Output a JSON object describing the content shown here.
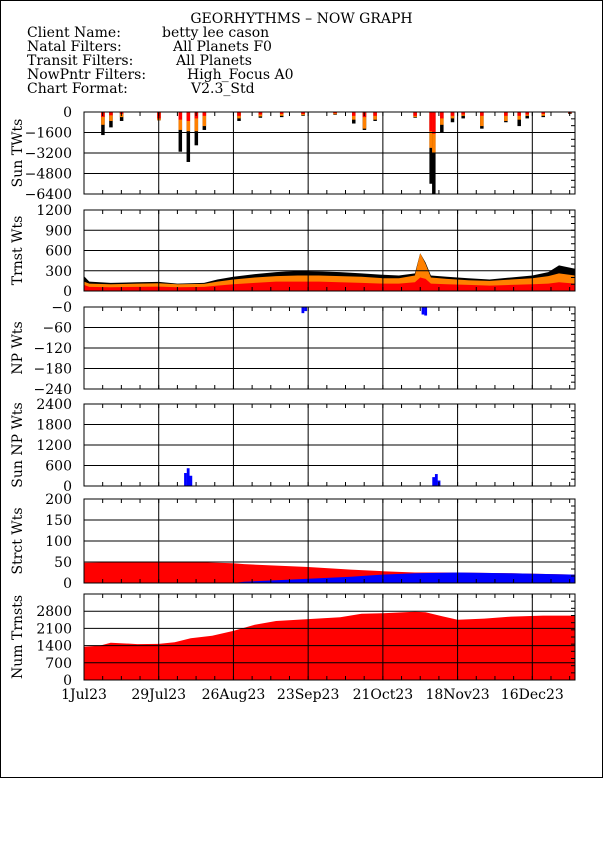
{
  "header": {
    "title": "GEORHYTHMS – NOW GRAPH",
    "rows": [
      {
        "label": "Client Name:",
        "value": "betty lee cason"
      },
      {
        "label": "Natal Filters:",
        "value": "All Planets F0"
      },
      {
        "label": "Transit Filters:",
        "value": "All Planets"
      },
      {
        "label": "NowPntr Filters:",
        "value": "High_Focus A0"
      },
      {
        "label": "Chart Format:",
        "value": "V2.3_Std"
      }
    ]
  },
  "colors": {
    "red": "#ff0000",
    "orange": "#ff8000",
    "black": "#000000",
    "blue": "#0000ff"
  },
  "chart_data": {
    "type": "bar",
    "x_tick_labels": [
      "1Jul23",
      "29Jul23",
      "26Aug23",
      "23Sep23",
      "21Oct23",
      "18Nov23",
      "16Dec23"
    ],
    "x_tick_days": [
      0,
      28,
      56,
      84,
      112,
      140,
      168
    ],
    "x_range_days": [
      0,
      184
    ],
    "grid": true,
    "panels": [
      {
        "name": "sun-twts",
        "ylabel": "Sun TWts",
        "ylim": [
          -6400,
          0
        ],
        "yticks": [
          "0",
          "−1600",
          "−3200",
          "−4800",
          "−6400"
        ],
        "tick_values": [
          0,
          -1600,
          -3200,
          -4800,
          -6400
        ],
        "mode": "negative-spikes",
        "events": [
          {
            "day": 7,
            "red": -380,
            "orange": -1000,
            "black": -1800
          },
          {
            "day": 10,
            "red": -260,
            "orange": -700,
            "black": -1200
          },
          {
            "day": 14,
            "red": -160,
            "orange": -400,
            "black": -700
          },
          {
            "day": 28,
            "red": -500,
            "orange": -650,
            "black": -650
          },
          {
            "day": 36,
            "red": -600,
            "orange": -1400,
            "black": -3100
          },
          {
            "day": 39,
            "red": -700,
            "orange": -1500,
            "black": -3900
          },
          {
            "day": 42,
            "red": -500,
            "orange": -1500,
            "black": -2600
          },
          {
            "day": 45,
            "red": -300,
            "orange": -1100,
            "black": -1400
          },
          {
            "day": 58,
            "red": -300,
            "orange": -500,
            "black": -700
          },
          {
            "day": 66,
            "red": -200,
            "orange": -350,
            "black": -450
          },
          {
            "day": 74,
            "red": -150,
            "orange": -300,
            "black": -400
          },
          {
            "day": 82,
            "red": -150,
            "orange": -250,
            "black": -300
          },
          {
            "day": 94,
            "red": -100,
            "orange": -180,
            "black": -220
          },
          {
            "day": 101,
            "red": -300,
            "orange": -600,
            "black": -900
          },
          {
            "day": 105,
            "red": -400,
            "orange": -1300,
            "black": -1400
          },
          {
            "day": 109,
            "red": -300,
            "orange": -600,
            "black": -700
          },
          {
            "day": 124,
            "red": -300,
            "orange": -400,
            "black": -450
          },
          {
            "day": 130,
            "red": -1500,
            "orange": -2800,
            "black": -5600
          },
          {
            "day": 131,
            "red": -1700,
            "orange": -3200,
            "black": -6400
          },
          {
            "day": 134,
            "red": -500,
            "orange": -1000,
            "black": -1600
          },
          {
            "day": 138,
            "red": -300,
            "orange": -500,
            "black": -800
          },
          {
            "day": 142,
            "red": -200,
            "orange": -300,
            "black": -500
          },
          {
            "day": 149,
            "red": -300,
            "orange": -1100,
            "black": -1300
          },
          {
            "day": 158,
            "red": -300,
            "orange": -700,
            "black": -800
          },
          {
            "day": 163,
            "red": -300,
            "orange": -600,
            "black": -1100
          },
          {
            "day": 166,
            "red": -200,
            "orange": -300,
            "black": -500
          },
          {
            "day": 172,
            "red": -150,
            "orange": -300,
            "black": -400
          },
          {
            "day": 182,
            "red": -80,
            "orange": -100,
            "black": -150
          }
        ]
      },
      {
        "name": "trnst-wts",
        "ylabel": "Trnst Wts",
        "ylim": [
          0,
          1200
        ],
        "yticks": [
          "1200",
          "900",
          "600",
          "300",
          "0"
        ],
        "tick_values": [
          1200,
          900,
          600,
          300,
          0
        ],
        "mode": "stacked-area",
        "points": [
          {
            "day": 0,
            "red": 90,
            "orange": 140,
            "black": 220
          },
          {
            "day": 2,
            "red": 60,
            "orange": 110,
            "black": 140
          },
          {
            "day": 10,
            "red": 55,
            "orange": 100,
            "black": 120
          },
          {
            "day": 20,
            "red": 60,
            "orange": 110,
            "black": 130
          },
          {
            "day": 28,
            "red": 65,
            "orange": 115,
            "black": 135
          },
          {
            "day": 35,
            "red": 55,
            "orange": 100,
            "black": 110
          },
          {
            "day": 45,
            "red": 60,
            "orange": 105,
            "black": 120
          },
          {
            "day": 50,
            "red": 80,
            "orange": 140,
            "black": 170
          },
          {
            "day": 56,
            "red": 100,
            "orange": 170,
            "black": 210
          },
          {
            "day": 64,
            "red": 120,
            "orange": 200,
            "black": 250
          },
          {
            "day": 72,
            "red": 140,
            "orange": 220,
            "black": 280
          },
          {
            "day": 80,
            "red": 140,
            "orange": 230,
            "black": 300
          },
          {
            "day": 88,
            "red": 140,
            "orange": 230,
            "black": 290
          },
          {
            "day": 96,
            "red": 130,
            "orange": 220,
            "black": 280
          },
          {
            "day": 104,
            "red": 120,
            "orange": 210,
            "black": 260
          },
          {
            "day": 112,
            "red": 110,
            "orange": 190,
            "black": 240
          },
          {
            "day": 118,
            "red": 110,
            "orange": 190,
            "black": 230
          },
          {
            "day": 124,
            "red": 130,
            "orange": 230,
            "black": 260
          },
          {
            "day": 126,
            "red": 200,
            "orange": 560,
            "black": 560
          },
          {
            "day": 128,
            "red": 180,
            "orange": 400,
            "black": 420
          },
          {
            "day": 130,
            "red": 110,
            "orange": 200,
            "black": 230
          },
          {
            "day": 136,
            "red": 100,
            "orange": 180,
            "black": 210
          },
          {
            "day": 144,
            "red": 90,
            "orange": 160,
            "black": 190
          },
          {
            "day": 152,
            "red": 80,
            "orange": 150,
            "black": 170
          },
          {
            "day": 160,
            "red": 90,
            "orange": 170,
            "black": 200
          },
          {
            "day": 168,
            "red": 100,
            "orange": 190,
            "black": 230
          },
          {
            "day": 174,
            "red": 110,
            "orange": 220,
            "black": 280
          },
          {
            "day": 178,
            "red": 130,
            "orange": 260,
            "black": 380
          },
          {
            "day": 184,
            "red": 110,
            "orange": 230,
            "black": 330
          }
        ]
      },
      {
        "name": "np-wts",
        "ylabel": "NP Wts",
        "ylim": [
          -240,
          0
        ],
        "yticks": [
          "−0",
          "−60",
          "−120",
          "−180",
          "−240"
        ],
        "tick_values": [
          0,
          -60,
          -120,
          -180,
          -240
        ],
        "mode": "blue-bars",
        "bars": [
          {
            "day": 82,
            "value": -18
          },
          {
            "day": 83,
            "value": -12
          },
          {
            "day": 127,
            "value": -22
          },
          {
            "day": 128,
            "value": -25
          }
        ]
      },
      {
        "name": "sun-np-wts",
        "ylabel": "Sun NP Wts",
        "ylim": [
          0,
          2400
        ],
        "yticks": [
          "2400",
          "1800",
          "1200",
          "600",
          "0"
        ],
        "tick_values": [
          2400,
          1800,
          1200,
          600,
          0
        ],
        "mode": "blue-bars",
        "bars": [
          {
            "day": 38,
            "value": 380
          },
          {
            "day": 39,
            "value": 520
          },
          {
            "day": 40,
            "value": 300
          },
          {
            "day": 131,
            "value": 260
          },
          {
            "day": 132,
            "value": 350
          },
          {
            "day": 133,
            "value": 160
          }
        ]
      },
      {
        "name": "strct-wts",
        "ylabel": "Strct Wts",
        "ylim": [
          0,
          200
        ],
        "yticks": [
          "200",
          "150",
          "100",
          "50",
          "0"
        ],
        "tick_values": [
          200,
          150,
          100,
          50,
          0
        ],
        "mode": "red-blue-area",
        "points": [
          {
            "day": 0,
            "red": 48,
            "blue": 0
          },
          {
            "day": 20,
            "red": 50,
            "blue": 0
          },
          {
            "day": 40,
            "red": 50,
            "blue": 0
          },
          {
            "day": 56,
            "red": 47,
            "blue": 0
          },
          {
            "day": 60,
            "red": 45,
            "blue": 3
          },
          {
            "day": 70,
            "red": 42,
            "blue": 6
          },
          {
            "day": 84,
            "red": 38,
            "blue": 10
          },
          {
            "day": 100,
            "red": 32,
            "blue": 15
          },
          {
            "day": 112,
            "red": 28,
            "blue": 20
          },
          {
            "day": 124,
            "red": 25,
            "blue": 23
          },
          {
            "day": 140,
            "red": 25,
            "blue": 25
          },
          {
            "day": 160,
            "red": 23,
            "blue": 23
          },
          {
            "day": 184,
            "red": 20,
            "blue": 20
          }
        ]
      },
      {
        "name": "num-trnsts",
        "ylabel": "Num Trnsts",
        "ylim": [
          0,
          3500
        ],
        "yticks": [
          "2800",
          "2100",
          "1400",
          "700",
          "0"
        ],
        "tick_values": [
          2800,
          2100,
          1400,
          700,
          0
        ],
        "mode": "red-area",
        "points": [
          {
            "day": 0,
            "value": 1350
          },
          {
            "day": 6,
            "value": 1400
          },
          {
            "day": 10,
            "value": 1520
          },
          {
            "day": 20,
            "value": 1460
          },
          {
            "day": 28,
            "value": 1470
          },
          {
            "day": 34,
            "value": 1540
          },
          {
            "day": 40,
            "value": 1700
          },
          {
            "day": 48,
            "value": 1800
          },
          {
            "day": 56,
            "value": 2000
          },
          {
            "day": 64,
            "value": 2250
          },
          {
            "day": 72,
            "value": 2400
          },
          {
            "day": 84,
            "value": 2480
          },
          {
            "day": 96,
            "value": 2550
          },
          {
            "day": 104,
            "value": 2700
          },
          {
            "day": 112,
            "value": 2720
          },
          {
            "day": 124,
            "value": 2780
          },
          {
            "day": 128,
            "value": 2760
          },
          {
            "day": 134,
            "value": 2600
          },
          {
            "day": 140,
            "value": 2450
          },
          {
            "day": 150,
            "value": 2500
          },
          {
            "day": 160,
            "value": 2580
          },
          {
            "day": 172,
            "value": 2620
          },
          {
            "day": 184,
            "value": 2620
          }
        ]
      }
    ]
  }
}
